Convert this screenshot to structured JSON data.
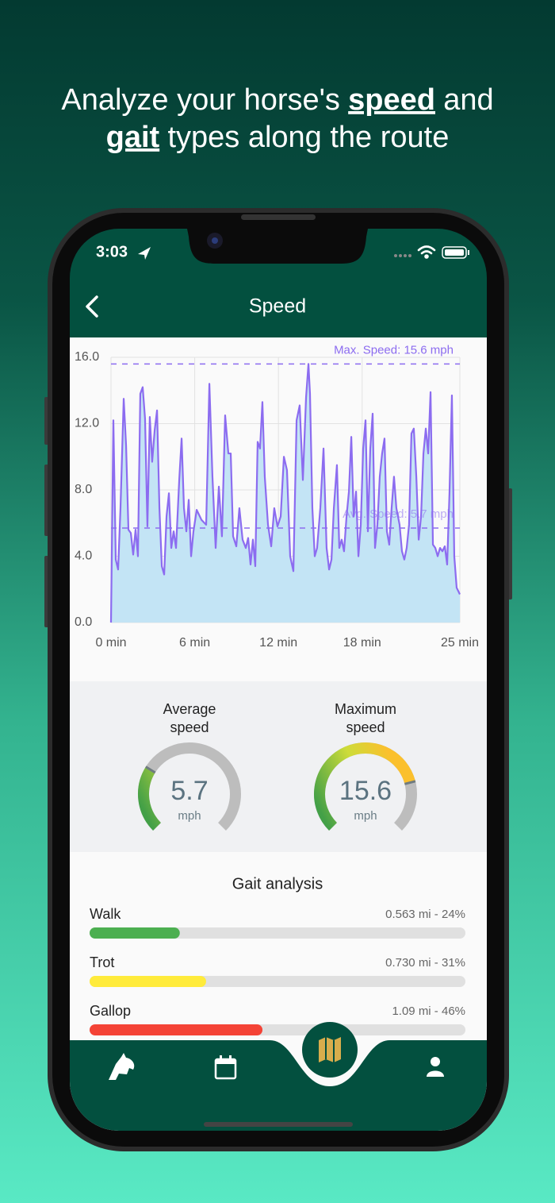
{
  "headline": [
    [
      {
        "text": "Analyze your horse's",
        "emphasis": false
      },
      {
        "text": "speed",
        "emphasis": true
      },
      {
        "text": "and",
        "emphasis": false
      }
    ],
    [
      {
        "text": "gait",
        "emphasis": true
      },
      {
        "text": "types along the route",
        "emphasis": false
      }
    ]
  ],
  "status_bar": {
    "time": "3:03"
  },
  "header": {
    "title": "Speed"
  },
  "chart_data": {
    "type": "area",
    "x": [
      0,
      0.17,
      0.34,
      0.51,
      0.68,
      0.91,
      1.08,
      1.25,
      1.42,
      1.59,
      1.76,
      1.93,
      2.1,
      2.27,
      2.44,
      2.61,
      2.78,
      2.95,
      3.13,
      3.3,
      3.47,
      3.64,
      3.81,
      3.98,
      4.15,
      4.32,
      4.49,
      4.66,
      4.89,
      5.06,
      5.23,
      5.4,
      5.57,
      5.74,
      5.91,
      6.14,
      6.48,
      6.82,
      7.05,
      7.27,
      7.5,
      7.73,
      7.95,
      8.18,
      8.41,
      8.58,
      8.75,
      8.98,
      9.2,
      9.43,
      9.66,
      9.83,
      10.0,
      10.17,
      10.34,
      10.51,
      10.68,
      10.85,
      11.02,
      11.25,
      11.48,
      11.7,
      11.93,
      12.16,
      12.39,
      12.61,
      12.84,
      13.07,
      13.3,
      13.52,
      13.75,
      13.98,
      14.15,
      14.26,
      14.43,
      14.6,
      14.77,
      15.0,
      15.23,
      15.45,
      15.63,
      15.8,
      15.97,
      16.19,
      16.36,
      16.53,
      16.7,
      16.88,
      17.05,
      17.22,
      17.39,
      17.56,
      17.73,
      17.9,
      18.07,
      18.24,
      18.41,
      18.58,
      18.75,
      18.92,
      19.09,
      19.26,
      19.43,
      19.6,
      19.77,
      19.94,
      20.11,
      20.28,
      20.45,
      20.68,
      20.85,
      21.02,
      21.19,
      21.36,
      21.53,
      21.7,
      21.88,
      22.05,
      22.22,
      22.39,
      22.56,
      22.73,
      22.9,
      23.07,
      23.24,
      23.41,
      23.58,
      23.75,
      23.92,
      24.09,
      24.26,
      24.43,
      24.6,
      24.77,
      25.0
    ],
    "values": [
      0,
      12.2,
      3.8,
      3.2,
      6.9,
      13.5,
      10.7,
      5.6,
      5.4,
      4.1,
      5.6,
      4.0,
      13.8,
      14.2,
      12.3,
      5.8,
      12.4,
      9.7,
      11.6,
      12.8,
      6.9,
      3.4,
      2.9,
      6.4,
      7.8,
      4.5,
      5.5,
      4.5,
      8.6,
      11.1,
      6.9,
      5.5,
      7.4,
      4.0,
      5.5,
      6.8,
      6.2,
      5.9,
      14.4,
      8.8,
      4.5,
      8.2,
      5.2,
      12.5,
      10.2,
      10.2,
      5.2,
      4.6,
      6.9,
      5.0,
      4.5,
      5.1,
      3.5,
      5.0,
      3.4,
      10.9,
      10.5,
      13.3,
      8.8,
      5.9,
      4.6,
      6.9,
      5.8,
      6.4,
      10.0,
      9.2,
      4.0,
      3.1,
      12.2,
      13.1,
      8.6,
      13.6,
      15.6,
      13.8,
      6.9,
      4.0,
      4.5,
      6.9,
      10.5,
      4.5,
      3.2,
      3.8,
      6.9,
      9.5,
      4.5,
      5.0,
      4.3,
      6.4,
      7.9,
      11.2,
      6.4,
      7.9,
      4.0,
      5.9,
      10.5,
      12.2,
      5.5,
      10.5,
      12.6,
      4.5,
      5.9,
      8.8,
      10.2,
      11.1,
      5.5,
      4.7,
      6.9,
      8.8,
      6.9,
      5.9,
      4.3,
      3.8,
      4.5,
      5.9,
      11.4,
      11.7,
      8.8,
      5.0,
      6.4,
      10.2,
      11.7,
      10.2,
      13.9,
      4.7,
      4.5,
      4.0,
      4.5,
      4.3,
      4.6,
      3.5,
      7.9,
      13.7,
      4.0,
      2.1,
      1.7
    ],
    "color": "#8c6cf0",
    "fill": "#c3e4f5",
    "xlim": [
      0,
      25
    ],
    "xticks": [
      {
        "value": 0,
        "label": "0 min"
      },
      {
        "value": 6,
        "label": "6 min"
      },
      {
        "value": 12,
        "label": "12 min"
      },
      {
        "value": 18,
        "label": "18 min"
      },
      {
        "value": 25,
        "label": "25 min"
      }
    ],
    "ylim": [
      0,
      16
    ],
    "yticks": [
      {
        "value": 0,
        "label": "0.0"
      },
      {
        "value": 4,
        "label": "4.0"
      },
      {
        "value": 8,
        "label": "8.0"
      },
      {
        "value": 12,
        "label": "12.0"
      },
      {
        "value": 16,
        "label": "16.0"
      }
    ],
    "grid": true,
    "reference_lines": [
      {
        "value": 15.6,
        "label": "Max. Speed: 15.6 mph"
      },
      {
        "value": 5.7,
        "label": "Avg. Speed: 5.7 mph"
      }
    ]
  },
  "stats": {
    "gauge_range": [
      0,
      20
    ],
    "gauges": [
      {
        "title": "Average speed",
        "value": 5.7,
        "unit": "mph"
      },
      {
        "title": "Maximum speed",
        "value": 15.6,
        "unit": "mph"
      }
    ]
  },
  "gait_analysis": {
    "title": "Gait analysis",
    "rows": [
      {
        "name": "Walk",
        "percent": 24,
        "label": "0.563 mi - 24%",
        "color": "#4caf50"
      },
      {
        "name": "Trot",
        "percent": 31,
        "label": "0.730 mi - 31%",
        "color": "#ffeb3b"
      },
      {
        "name": "Gallop",
        "percent": 46,
        "label": "1.09 mi - 46%",
        "color": "#f44336"
      }
    ]
  }
}
